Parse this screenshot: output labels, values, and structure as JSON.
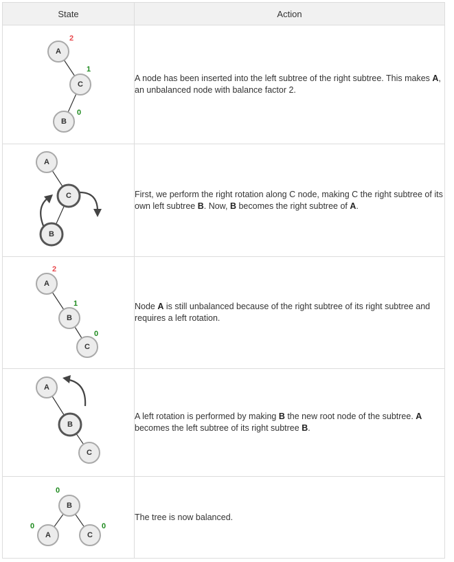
{
  "header": {
    "state": "State",
    "action": "Action"
  },
  "colors": {
    "red": "#e8474c",
    "green": "#1e8a1e"
  },
  "rows": [
    {
      "nodes": [
        "A",
        "C",
        "B"
      ],
      "balance": [
        "2",
        "1",
        "0"
      ],
      "action": [
        {
          "t": "A node has been inserted into the left subtree of the right subtree. This makes "
        },
        {
          "t": "A",
          "b": true
        },
        {
          "t": ", an unbalanced node with balance factor 2."
        }
      ]
    },
    {
      "nodes": [
        "A",
        "C",
        "B"
      ],
      "balance": [],
      "action": [
        {
          "t": "First, we perform the right rotation along C node, making C the right subtree of its own left subtree "
        },
        {
          "t": "B",
          "b": true
        },
        {
          "t": ". Now, "
        },
        {
          "t": "B",
          "b": true
        },
        {
          "t": " becomes the right subtree of "
        },
        {
          "t": "A",
          "b": true
        },
        {
          "t": "."
        }
      ]
    },
    {
      "nodes": [
        "A",
        "B",
        "C"
      ],
      "balance": [
        "2",
        "1",
        "0"
      ],
      "action": [
        {
          "t": "Node "
        },
        {
          "t": "A",
          "b": true
        },
        {
          "t": " is still unbalanced because of the right subtree of its right subtree and requires a left rotation."
        }
      ]
    },
    {
      "nodes": [
        "A",
        "B",
        "C"
      ],
      "balance": [],
      "action": [
        {
          "t": "A left rotation is performed by making "
        },
        {
          "t": "B",
          "b": true
        },
        {
          "t": " the new root node of the subtree. "
        },
        {
          "t": "A",
          "b": true
        },
        {
          "t": " becomes the left subtree of its right subtree "
        },
        {
          "t": "B",
          "b": true
        },
        {
          "t": "."
        }
      ]
    },
    {
      "nodes": [
        "B",
        "A",
        "C"
      ],
      "balance": [
        "0",
        "0",
        "0"
      ],
      "action": [
        {
          "t": "The tree is now balanced."
        }
      ]
    }
  ]
}
